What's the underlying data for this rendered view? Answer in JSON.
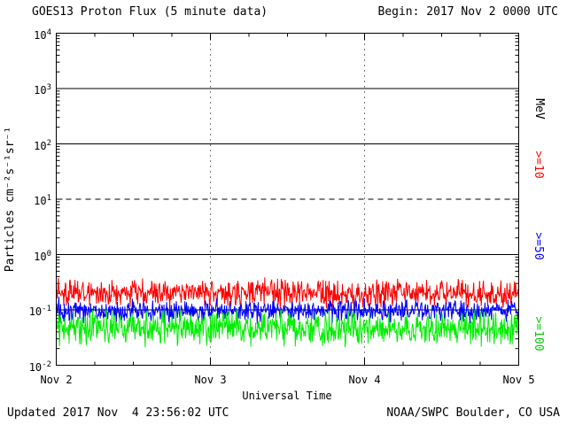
{
  "header": {
    "title": "GOES13 Proton Flux (5 minute data)",
    "begin_label": "Begin: 2017 Nov 2 0000 UTC"
  },
  "footer": {
    "updated": "Updated 2017 Nov  4 23:56:02 UTC",
    "credit": "NOAA/SWPC Boulder, CO USA"
  },
  "chart_data": {
    "type": "line",
    "title": "GOES13 Proton Flux (5 minute data)",
    "xlabel": "Universal Time",
    "ylabel": "Particles cm⁻²s⁻¹sr⁻¹",
    "y_scale": "log10",
    "ylim": [
      0.01,
      10000
    ],
    "y_tick_exponents": [
      4,
      3,
      2,
      1,
      0,
      -1,
      -2
    ],
    "x_start": "2017 Nov 2 0000 UTC",
    "x_end": "2017 Nov 5 0000 UTC",
    "x_tick_labels": [
      "Nov 2",
      "Nov 3",
      "Nov 4",
      "Nov 5"
    ],
    "grid": {
      "solid_horizontal_values": [
        1000,
        100,
        1,
        0.1
      ],
      "dashed_horizontal_values": [
        10
      ],
      "dotted_vertical_days": [
        "Nov 3",
        "Nov 4"
      ]
    },
    "right_axis_unit": "MeV",
    "legend_position": "right-rotated",
    "series": [
      {
        "name": ">=10 MeV proton flux",
        "label": ">=10",
        "color": "#FF0000",
        "approx_mean": 0.2,
        "approx_min": 0.11,
        "approx_max": 0.4,
        "log10_mean": -0.7,
        "log10_noise": 0.16
      },
      {
        "name": ">=50 MeV proton flux",
        "label": ">=50",
        "color": "#0000FF",
        "approx_mean": 0.095,
        "approx_min": 0.06,
        "approx_max": 0.16,
        "log10_mean": -1.02,
        "log10_noise": 0.13
      },
      {
        "name": ">=100 MeV proton flux",
        "label": ">=100",
        "color": "#00EE00",
        "approx_mean": 0.047,
        "approx_min": 0.018,
        "approx_max": 0.1,
        "log10_mean": -1.33,
        "log10_noise": 0.2
      }
    ],
    "points_per_series": 864,
    "noise_seed": 20171102,
    "description": "Quiet background proton flux; all three channels flat noisy bands between 0.02 and 0.4 pfu from Nov 2 0000 UTC through Nov 5 0000 UTC."
  }
}
